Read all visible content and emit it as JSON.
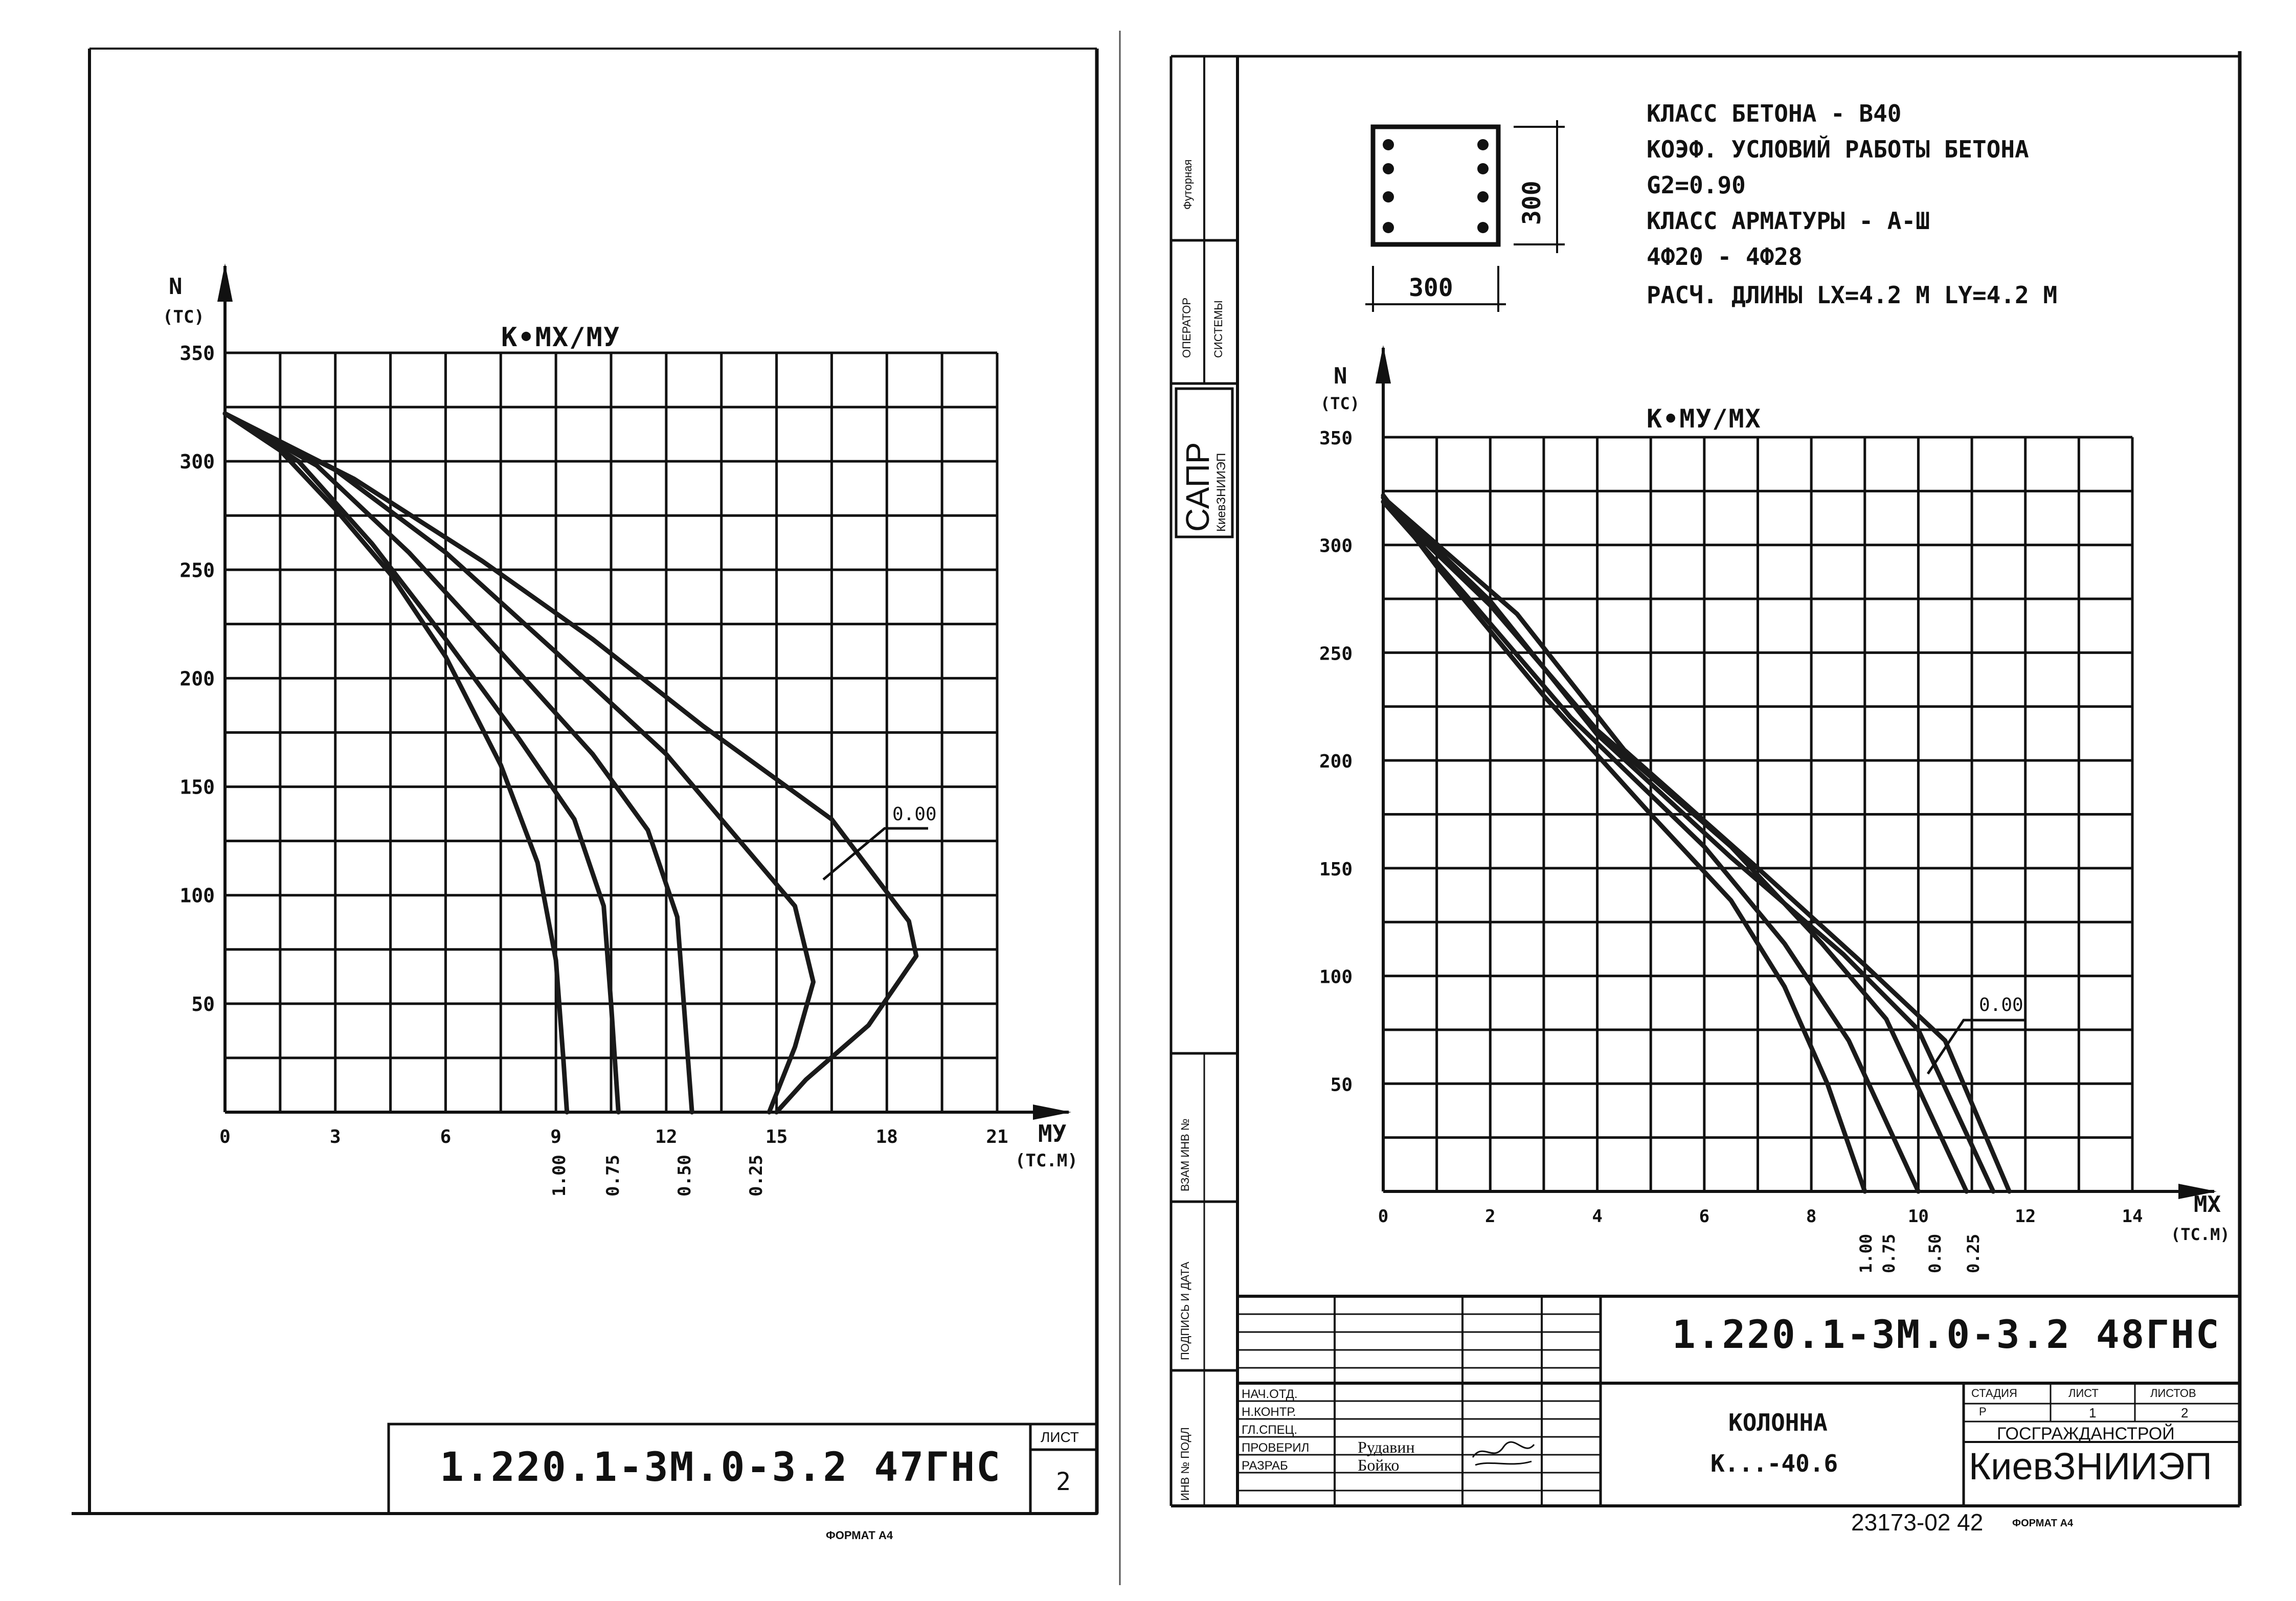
{
  "left_sheet": {
    "chart_title": "К•МХ/МУ",
    "y_axis_label": "N",
    "y_axis_unit": "(ТС)",
    "x_axis_label": "МУ",
    "x_axis_unit": "(ТС.М)",
    "y_ticks": [
      "350",
      "300",
      "250",
      "200",
      "150",
      "100",
      "50"
    ],
    "x_ticks": [
      "0",
      "3",
      "6",
      "9",
      "12",
      "15",
      "18",
      "21"
    ],
    "curve_labels": [
      "1.00",
      "0.75",
      "0.50",
      "0.25"
    ],
    "callout": "0.00",
    "doc_code": "1.220.1-3М.0-3.2 47ГНС",
    "sheet_label": "ЛИСТ",
    "sheet_number": "2",
    "format": "ФОРМАТ А4"
  },
  "right_sheet": {
    "notes": [
      "КЛАСС БЕТОНА - В40",
      "КОЭФ. УСЛОВИЙ РАБОТЫ БЕТОНА",
      "G2=0.90",
      "КЛАСС АРМАТУРЫ - А-Ш",
      "4Ф20 - 4Ф28",
      "РАСЧ. ДЛИНЫ  LX=4.2 М  LY=4.2 М"
    ],
    "section_width": "300",
    "section_height": "300",
    "chart_title": "К•МУ/МХ",
    "y_axis_label": "N",
    "y_axis_unit": "(ТС)",
    "x_axis_label": "МХ",
    "x_axis_unit": "(ТС.М)",
    "y_ticks": [
      "350",
      "300",
      "250",
      "200",
      "150",
      "100",
      "50"
    ],
    "x_ticks": [
      "0",
      "2",
      "4",
      "6",
      "8",
      "10",
      "12",
      "14"
    ],
    "curve_labels": [
      "1.00",
      "0.75",
      "0.50",
      "0.25"
    ],
    "callout": "0.00",
    "side_stamp": {
      "futorna": "Футорная",
      "operator": "ОПЕРАТОР",
      "system": "СИСТЕМЫ",
      "sapr": "САПР",
      "kiev": "КиевЗНИИЭП",
      "vzam": "ВЗАМ ИНВ №",
      "podpis": "ПОДПИСЬ И ДАТА",
      "inv": "ИНВ № ПОДЛ"
    },
    "title_block": {
      "doc_code": "1.220.1-3М.0-3.2 48ГНС",
      "roles": [
        "НАЧ.ОТД.",
        "Н.КОНТР.",
        "ГЛ.СПЕЦ.",
        "ПРОВЕРИЛ",
        "РАЗРАБ"
      ],
      "names": [
        "",
        "",
        "",
        "Рудавин",
        "Бойко"
      ],
      "item_name": "КОЛОННА",
      "item_mark": "К...-40.6",
      "stage_label": "СТАДИЯ",
      "sheet_label": "ЛИСТ",
      "sheets_label": "ЛИСТОВ",
      "stage": "Р",
      "sheet": "1",
      "sheets": "2",
      "org1": "ГОСГРАЖДАНСТРОЙ",
      "org2": "КиевЗНИИЭП"
    },
    "archive_no": "23173-02 42",
    "format": "ФОРМАТ А4"
  }
}
